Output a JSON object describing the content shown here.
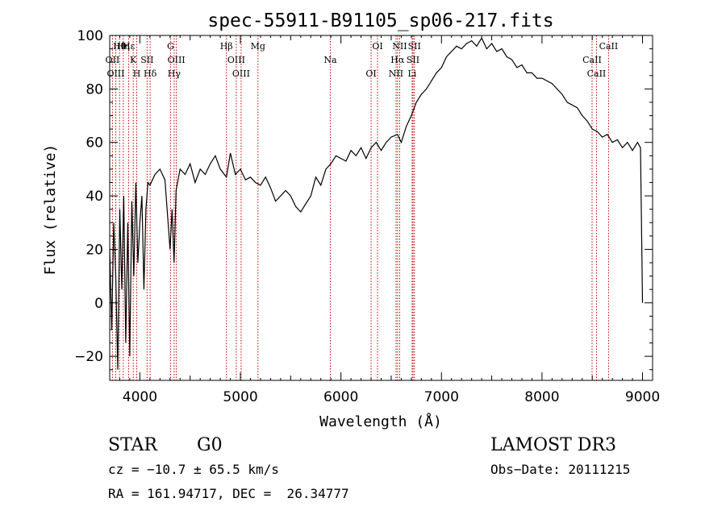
{
  "chart_data": {
    "type": "line",
    "title": "spec-55911-B91105_sp06-217.fits",
    "xlabel": "Wavelength (Å)",
    "ylabel": "Flux (relative)",
    "xlim": [
      3700,
      9100
    ],
    "ylim": [
      -29,
      100
    ],
    "xticks": [
      4000,
      5000,
      6000,
      7000,
      8000,
      9000
    ],
    "yticks": [
      -20,
      0,
      20,
      40,
      60,
      80,
      100
    ],
    "grid": false,
    "series": [
      {
        "name": "flux",
        "x": [
          3700,
          3720,
          3740,
          3760,
          3780,
          3800,
          3820,
          3840,
          3860,
          3880,
          3900,
          3920,
          3940,
          3960,
          3980,
          4000,
          4020,
          4040,
          4060,
          4080,
          4100,
          4150,
          4200,
          4250,
          4300,
          4320,
          4340,
          4360,
          4400,
          4450,
          4500,
          4550,
          4600,
          4650,
          4700,
          4750,
          4800,
          4861,
          4900,
          4950,
          5000,
          5050,
          5100,
          5150,
          5200,
          5250,
          5300,
          5350,
          5400,
          5450,
          5500,
          5550,
          5600,
          5650,
          5700,
          5750,
          5800,
          5850,
          5900,
          5950,
          6000,
          6050,
          6100,
          6150,
          6200,
          6250,
          6300,
          6350,
          6400,
          6450,
          6500,
          6563,
          6600,
          6650,
          6700,
          6750,
          6800,
          6850,
          6900,
          6950,
          7000,
          7050,
          7100,
          7150,
          7200,
          7250,
          7300,
          7350,
          7400,
          7450,
          7500,
          7550,
          7600,
          7650,
          7700,
          7750,
          7800,
          7850,
          7900,
          7950,
          8000,
          8050,
          8100,
          8150,
          8200,
          8250,
          8300,
          8350,
          8400,
          8450,
          8500,
          8550,
          8600,
          8650,
          8700,
          8750,
          8800,
          8850,
          8900,
          8950,
          8980,
          9000
        ],
        "values": [
          20,
          -10,
          30,
          10,
          -25,
          35,
          5,
          40,
          -15,
          30,
          -20,
          38,
          10,
          45,
          15,
          30,
          40,
          5,
          35,
          45,
          44,
          48,
          50,
          46,
          20,
          35,
          15,
          42,
          50,
          48,
          52,
          45,
          50,
          48,
          52,
          55,
          50,
          47,
          56,
          48,
          50,
          46,
          47,
          45,
          44,
          47,
          43,
          38,
          40,
          42,
          40,
          36,
          34,
          37,
          40,
          47,
          44,
          50,
          52,
          55,
          54,
          53,
          57,
          55,
          58,
          54,
          58,
          60,
          57,
          60,
          62,
          63,
          60,
          66,
          70,
          75,
          78,
          80,
          83,
          86,
          88,
          92,
          94,
          96,
          95,
          97,
          98,
          96,
          99,
          95,
          97,
          94,
          95,
          92,
          91,
          88,
          89,
          86,
          86,
          84,
          84,
          83,
          82,
          80,
          78,
          75,
          74,
          73,
          70,
          68,
          65,
          64,
          62,
          63,
          60,
          61,
          58,
          60,
          57,
          60,
          58,
          0
        ]
      }
    ],
    "lines": [
      {
        "label": "Hθ",
        "x": 3798
      },
      {
        "label": "OII",
        "x": 3727
      },
      {
        "label": "OIII",
        "x": 3760
      },
      {
        "label": "Hη",
        "x": 3835
      },
      {
        "label": "K",
        "x": 3934
      },
      {
        "label": "H",
        "x": 3969
      },
      {
        "label": "Hε",
        "x": 3889
      },
      {
        "label": "SII",
        "x": 4072
      },
      {
        "label": "Hδ",
        "x": 4102
      },
      {
        "label": "G",
        "x": 4305
      },
      {
        "label": "OIII",
        "x": 4363
      },
      {
        "label": "Hγ",
        "x": 4341
      },
      {
        "label": "Hβ",
        "x": 4861
      },
      {
        "label": "OIII",
        "x": 4959
      },
      {
        "label": "OIII",
        "x": 5007
      },
      {
        "label": "Mg",
        "x": 5175
      },
      {
        "label": "Na",
        "x": 5894
      },
      {
        "label": "OI",
        "x": 6300
      },
      {
        "label": "OI",
        "x": 6364
      },
      {
        "label": "Hα",
        "x": 6563
      },
      {
        "label": "NII",
        "x": 6548
      },
      {
        "label": "NII",
        "x": 6584
      },
      {
        "label": "SII",
        "x": 6717
      },
      {
        "label": "Li",
        "x": 6708
      },
      {
        "label": "SII",
        "x": 6731
      },
      {
        "label": "CaII",
        "x": 8498
      },
      {
        "label": "CaII",
        "x": 8542
      },
      {
        "label": "CaII",
        "x": 8662
      }
    ],
    "colors": {
      "spectrum": "#000000",
      "line_marker": "#c00000",
      "frame": "#000000"
    }
  },
  "info": {
    "class": "STAR",
    "subclass": "G0",
    "survey": "LAMOST DR3",
    "cz": "cz = −10.7 ± 65.5 km/s",
    "obs_date": "Obs−Date: 20111215",
    "coords": "RA = 161.94717, DEC =  26.34777"
  }
}
